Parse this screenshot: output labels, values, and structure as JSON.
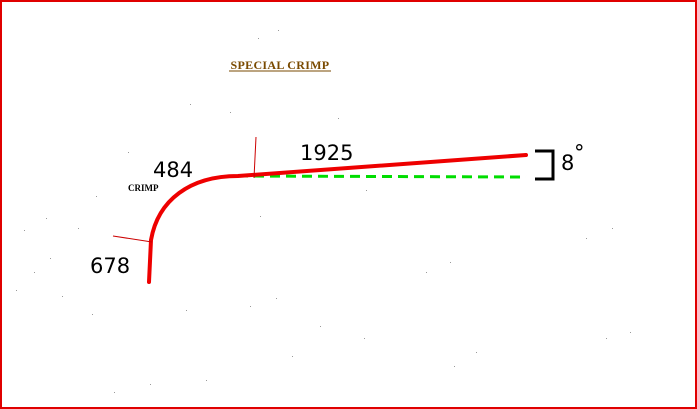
{
  "title": "SPECIAL CRIMP",
  "crimp_label": "CRIMP",
  "dimensions": {
    "vertical_leg": "678",
    "bend_arc": "484",
    "sloped_leg": "1925",
    "angle": "8",
    "angle_unit": "°"
  },
  "colors": {
    "frame": "#e00000",
    "profile": "#ee0000",
    "reference": "#00dd00",
    "dimension_tick": "#cc0000",
    "title": "#7a4a00",
    "text": "#000000"
  }
}
